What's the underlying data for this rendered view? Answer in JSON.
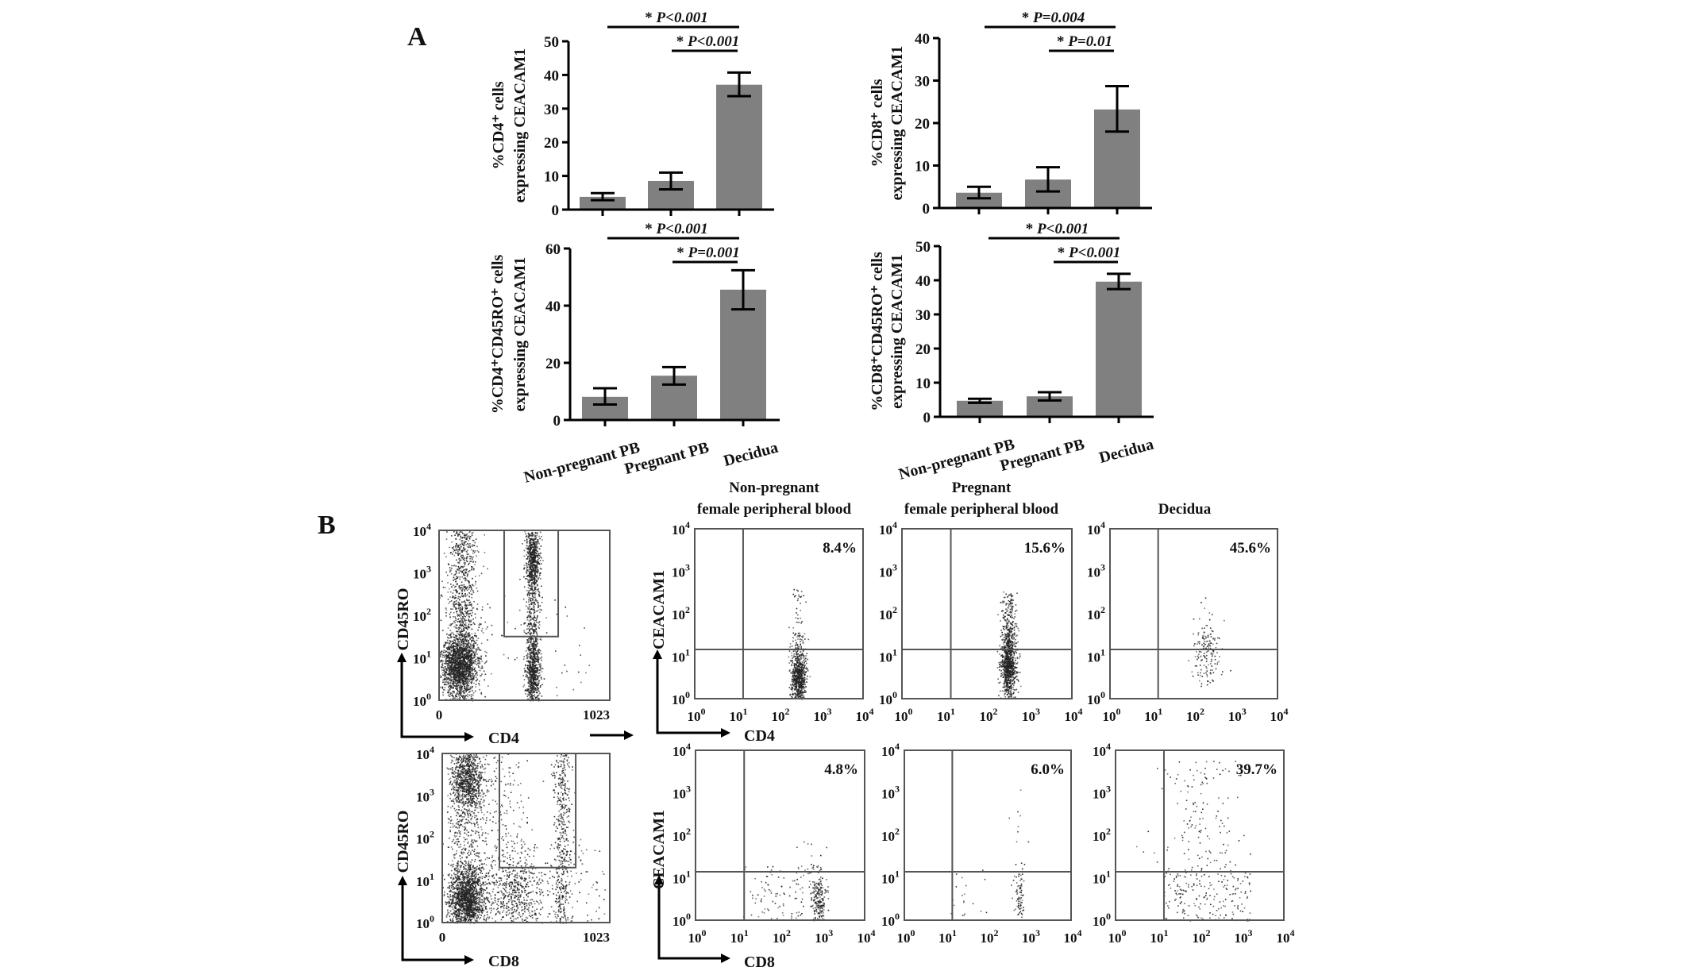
{
  "panel_labels": {
    "a": "A",
    "b": "B"
  },
  "colors": {
    "bar": "#808080",
    "axis": "#000000",
    "dots": "#222222",
    "gate": "#555555"
  },
  "chart_data": [
    {
      "type": "bar",
      "panel": "A",
      "ylabel": [
        "%CD4⁺ cells",
        "expressing CEACAM1"
      ],
      "categories": [
        "Non-pregnant PB",
        "Pregnant PB",
        "Decidua"
      ],
      "values": [
        3.8,
        8.5,
        37.1
      ],
      "error_bars": [
        [
          2.8,
          4.9
        ],
        [
          6.0,
          11.0
        ],
        [
          33.7,
          40.7
        ]
      ],
      "ylim": [
        0,
        50
      ],
      "yticks": [
        "0",
        "10",
        "20",
        "30",
        "40",
        "50"
      ],
      "significance": [
        {
          "from": 0,
          "to": 2,
          "label": "* P<0.001"
        },
        {
          "from": 1,
          "to": 2,
          "label": "* P<0.001"
        }
      ]
    },
    {
      "type": "bar",
      "panel": "A",
      "ylabel": [
        "%CD8⁺ cells",
        "expressing CEACAM1"
      ],
      "categories": [
        "Non-pregnant PB",
        "Pregnant PB",
        "Decidua"
      ],
      "values": [
        3.6,
        6.7,
        23.2
      ],
      "error_bars": [
        [
          2.3,
          5.0
        ],
        [
          3.9,
          9.6
        ],
        [
          18.0,
          28.7
        ]
      ],
      "ylim": [
        0,
        40
      ],
      "yticks": [
        "0",
        "10",
        "20",
        "30",
        "40"
      ],
      "significance": [
        {
          "from": 0,
          "to": 2,
          "label": "* P=0.004"
        },
        {
          "from": 1,
          "to": 2,
          "label": "* P=0.01"
        }
      ]
    },
    {
      "type": "bar",
      "panel": "A",
      "ylabel": [
        "%CD4⁺CD45RO⁺ cells",
        "expressing CEACAM1"
      ],
      "categories": [
        "Non-pregnant PB",
        "Pregnant PB",
        "Decidua"
      ],
      "values": [
        8.1,
        15.5,
        45.6
      ],
      "error_bars": [
        [
          5.4,
          11.1
        ],
        [
          12.4,
          18.5
        ],
        [
          38.7,
          52.4
        ]
      ],
      "ylim": [
        0,
        60
      ],
      "yticks": [
        "0",
        "20",
        "40",
        "60"
      ],
      "significance": [
        {
          "from": 0,
          "to": 2,
          "label": "* P<0.001"
        },
        {
          "from": 1,
          "to": 2,
          "label": "* P=0.001"
        }
      ]
    },
    {
      "type": "bar",
      "panel": "A",
      "ylabel": [
        "%CD8⁺CD45RO⁺ cells",
        "expressing CEACAM1"
      ],
      "categories": [
        "Non-pregnant PB",
        "Pregnant PB",
        "Decidua"
      ],
      "values": [
        4.7,
        6.0,
        39.6
      ],
      "error_bars": [
        [
          4.1,
          5.3
        ],
        [
          4.8,
          7.2
        ],
        [
          37.4,
          41.9
        ]
      ],
      "ylim": [
        0,
        50
      ],
      "yticks": [
        "0",
        "10",
        "20",
        "30",
        "40",
        "50"
      ],
      "significance": [
        {
          "from": 0,
          "to": 2,
          "label": "* P<0.001"
        },
        {
          "from": 1,
          "to": 2,
          "label": "* P<0.001"
        }
      ]
    }
  ],
  "flow": {
    "gating_plots": [
      {
        "type": "scatter",
        "xlabel": "CD4",
        "ylabel": "CD45RO",
        "x_ticks": [
          "0",
          "1023"
        ],
        "x_range": [
          0,
          1023
        ],
        "y_scale": "log",
        "y_range": [
          1,
          10000
        ]
      },
      {
        "type": "scatter",
        "xlabel": "CD8",
        "ylabel": "CD45RO",
        "x_ticks": [
          "0",
          "1023"
        ],
        "x_range": [
          0,
          1023
        ],
        "y_scale": "log",
        "y_range": [
          1,
          10000
        ]
      }
    ],
    "log_tick": {
      "base": "10",
      "exponents": [
        "0",
        "1",
        "2",
        "3",
        "4"
      ]
    },
    "column_titles": [
      [
        "Non-pregnant",
        "female peripheral blood"
      ],
      [
        "Pregnant",
        "female peripheral blood"
      ],
      [
        "Decidua"
      ]
    ],
    "rows": [
      {
        "type": "scatter",
        "xlabel": "CD4",
        "ylabel": "CEACAM1",
        "x_scale": "log",
        "y_scale": "log",
        "upper_right_percent": [
          "8.4%",
          "15.6%",
          "45.6%"
        ]
      },
      {
        "type": "scatter",
        "xlabel": "CD8",
        "ylabel": "CEACAM1",
        "x_scale": "log",
        "y_scale": "log",
        "upper_right_percent": [
          "4.8%",
          "6.0%",
          "39.7%"
        ]
      }
    ]
  }
}
